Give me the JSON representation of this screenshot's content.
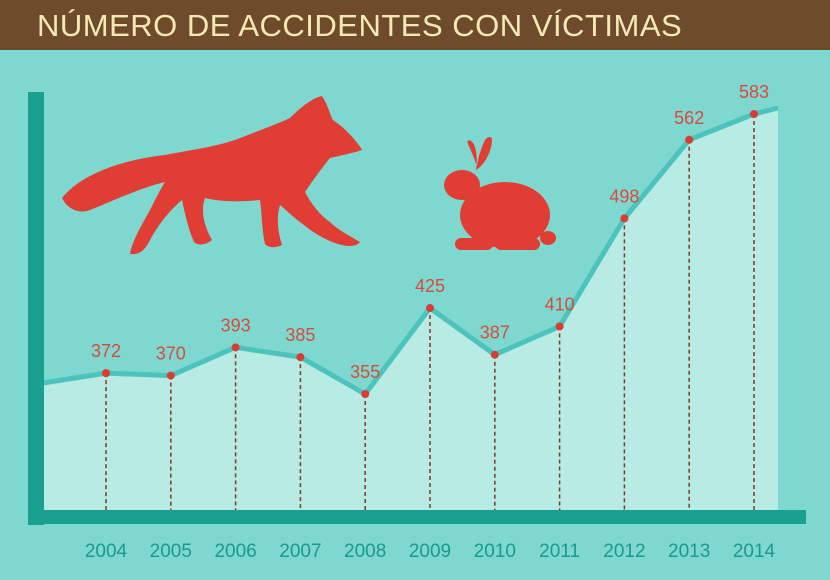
{
  "title": "NÚMERO DE ACCIDENTES CON VÍCTIMAS",
  "colors": {
    "header": "#6e4b2a",
    "title_text": "#f4e9b5",
    "background": "#7fd8cf",
    "area_fill": "#b8ebe3",
    "line": "#4dc3bd",
    "axis": "#1aa090",
    "points": "#d93d32",
    "labels": "#d84b3c",
    "years": "#1a9a8a",
    "guides": "#7a3b1e",
    "animals": "#e03e34"
  },
  "illustrations": [
    "fox-silhouette",
    "rabbit-silhouette"
  ],
  "chart_data": {
    "type": "area",
    "title": "NÚMERO DE ACCIDENTES CON VÍCTIMAS",
    "x": [
      "2004",
      "2005",
      "2006",
      "2007",
      "2008",
      "2009",
      "2010",
      "2011",
      "2012",
      "2013",
      "2014"
    ],
    "values": [
      372,
      370,
      393,
      385,
      355,
      425,
      387,
      410,
      498,
      562,
      583
    ],
    "data_labels": [
      "372",
      "370",
      "393",
      "385",
      "355",
      "425",
      "387",
      "410",
      "498",
      "562",
      "583"
    ],
    "grid": false,
    "legend": "none"
  }
}
